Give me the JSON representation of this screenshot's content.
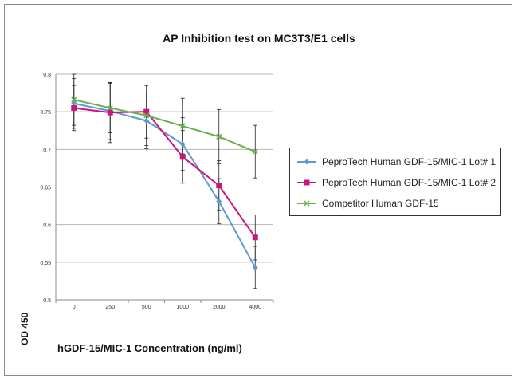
{
  "chart_data": {
    "type": "line",
    "title": "AP Inhibition test on MC3T3/E1 cells",
    "xlabel": "hGDF-15/MIC-1 Concentration (ng/ml)",
    "ylabel": "OD 450",
    "categories": [
      "0",
      "250",
      "500",
      "1000",
      "2000",
      "4000"
    ],
    "ylim": [
      0.5,
      0.8
    ],
    "yticks": [
      "0.5",
      "0.55",
      "0.6",
      "0.65",
      "0.7",
      "0.75",
      "0.8"
    ],
    "grid": true,
    "legend_position": "right",
    "series": [
      {
        "name": "PeproTech Human GDF-15/MIC-1 Lot# 1",
        "color": "#5b9bd5",
        "marker": "diamond",
        "values": [
          0.761,
          0.751,
          0.738,
          0.707,
          0.631,
          0.543
        ],
        "errors": [
          0.033,
          0.038,
          0.037,
          0.035,
          0.03,
          0.028
        ]
      },
      {
        "name": "PeproTech Human GDF-15/MIC-1 Lot# 2",
        "color": "#c8177c",
        "marker": "square",
        "values": [
          0.755,
          0.749,
          0.75,
          0.69,
          0.652,
          0.583
        ],
        "errors": [
          0.03,
          0.04,
          0.035,
          0.035,
          0.033,
          0.03
        ]
      },
      {
        "name": "Competitor Human GDF-15",
        "color": "#6ab04c",
        "marker": "x",
        "values": [
          0.766,
          0.755,
          0.745,
          0.731,
          0.717,
          0.697
        ],
        "errors": [
          0.034,
          0.033,
          0.04,
          0.037,
          0.036,
          0.035
        ]
      }
    ]
  }
}
